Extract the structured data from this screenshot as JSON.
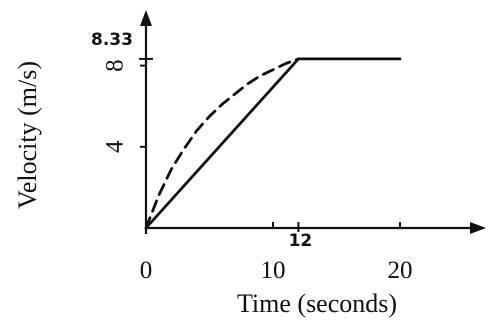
{
  "chart_data": {
    "type": "line",
    "xlabel": "Time (seconds)",
    "ylabel": "Velocity (m/s)",
    "xlim": [
      0,
      26
    ],
    "ylim": [
      0,
      10
    ],
    "x_ticks": [
      0,
      10,
      20
    ],
    "x_tick_labels": [
      "0",
      "10",
      "20"
    ],
    "y_ticks": [
      4,
      8
    ],
    "y_tick_labels": [
      "4",
      "8"
    ],
    "grid": false,
    "series": [
      {
        "style": "solid",
        "color": "#111111",
        "x": [
          0,
          12,
          20
        ],
        "y": [
          0,
          8.33,
          8.33
        ]
      },
      {
        "style": "dashed",
        "color": "#111111",
        "x": [
          0,
          1,
          2,
          3,
          4,
          5,
          6,
          7,
          8,
          9,
          10,
          11,
          12
        ],
        "y": [
          0,
          1.6,
          2.9,
          3.9,
          4.8,
          5.5,
          6.1,
          6.6,
          7.1,
          7.5,
          7.8,
          8.1,
          8.33
        ]
      }
    ],
    "annotations": [
      {
        "text": "8.33",
        "x": 0,
        "y": 8.33
      },
      {
        "text": "12",
        "x": 12,
        "y": 0
      }
    ]
  }
}
